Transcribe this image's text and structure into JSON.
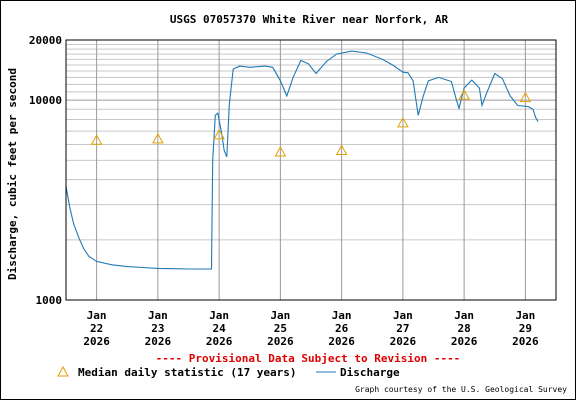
{
  "colors": {
    "discharge": "#1f7ab5",
    "median": "#e3a000",
    "provisional": "#e00000",
    "grid": "#c8c8c8"
  },
  "chart_data": {
    "type": "line",
    "title": "USGS 07057370 White River near Norfork, AR",
    "xlabel": "",
    "ylabel": "Discharge, cubic feet per second",
    "yscale": "log",
    "ylim": [
      1000,
      20000
    ],
    "xlim": [
      "2026-01-21T12:00",
      "2026-01-29T12:00"
    ],
    "grid": true,
    "y_ticks": [
      {
        "value": 1000,
        "label": "1000"
      },
      {
        "value": 10000,
        "label": "10000"
      },
      {
        "value": 20000,
        "label": "20000"
      }
    ],
    "x_ticks": [
      {
        "x": "2026-01-22",
        "line1": "Jan",
        "line2": "22",
        "line3": "2026"
      },
      {
        "x": "2026-01-23",
        "line1": "Jan",
        "line2": "23",
        "line3": "2026"
      },
      {
        "x": "2026-01-24",
        "line1": "Jan",
        "line2": "24",
        "line3": "2026"
      },
      {
        "x": "2026-01-25",
        "line1": "Jan",
        "line2": "25",
        "line3": "2026"
      },
      {
        "x": "2026-01-26",
        "line1": "Jan",
        "line2": "26",
        "line3": "2026"
      },
      {
        "x": "2026-01-27",
        "line1": "Jan",
        "line2": "27",
        "line3": "2026"
      },
      {
        "x": "2026-01-28",
        "line1": "Jan",
        "line2": "28",
        "line3": "2026"
      },
      {
        "x": "2026-01-29",
        "line1": "Jan",
        "line2": "29",
        "line3": "2026"
      }
    ],
    "series": [
      {
        "name": "Discharge",
        "points": [
          [
            "2026-01-21T12:00",
            3700
          ],
          [
            "2026-01-21T13:30",
            2900
          ],
          [
            "2026-01-21T15:00",
            2400
          ],
          [
            "2026-01-21T17:00",
            2050
          ],
          [
            "2026-01-21T19:00",
            1800
          ],
          [
            "2026-01-21T21:00",
            1650
          ],
          [
            "2026-01-22T00:00",
            1560
          ],
          [
            "2026-01-22T06:00",
            1500
          ],
          [
            "2026-01-22T12:00",
            1470
          ],
          [
            "2026-01-22T18:00",
            1455
          ],
          [
            "2026-01-23T00:00",
            1440
          ],
          [
            "2026-01-23T06:00",
            1435
          ],
          [
            "2026-01-23T12:00",
            1430
          ],
          [
            "2026-01-23T18:00",
            1430
          ],
          [
            "2026-01-23T21:00",
            1430
          ],
          [
            "2026-01-23T21:30",
            5000
          ],
          [
            "2026-01-23T22:30",
            8400
          ],
          [
            "2026-01-23T23:30",
            8600
          ],
          [
            "2026-01-24T01:00",
            6800
          ],
          [
            "2026-01-24T02:00",
            5600
          ],
          [
            "2026-01-24T03:00",
            5200
          ],
          [
            "2026-01-24T04:00",
            9500
          ],
          [
            "2026-01-24T05:30",
            14300
          ],
          [
            "2026-01-24T08:00",
            14800
          ],
          [
            "2026-01-24T12:00",
            14600
          ],
          [
            "2026-01-24T18:00",
            14800
          ],
          [
            "2026-01-24T21:00",
            14600
          ],
          [
            "2026-01-25T00:00",
            12500
          ],
          [
            "2026-01-25T02:30",
            10500
          ],
          [
            "2026-01-25T05:00",
            13000
          ],
          [
            "2026-01-25T08:00",
            15800
          ],
          [
            "2026-01-25T11:00",
            15200
          ],
          [
            "2026-01-25T14:00",
            13600
          ],
          [
            "2026-01-25T18:00",
            15600
          ],
          [
            "2026-01-25T22:00",
            17000
          ],
          [
            "2026-01-26T04:00",
            17600
          ],
          [
            "2026-01-26T10:00",
            17200
          ],
          [
            "2026-01-26T16:00",
            16000
          ],
          [
            "2026-01-26T20:00",
            15000
          ],
          [
            "2026-01-27T00:00",
            13800
          ],
          [
            "2026-01-27T02:00",
            13700
          ],
          [
            "2026-01-27T04:00",
            12500
          ],
          [
            "2026-01-27T06:00",
            8400
          ],
          [
            "2026-01-27T08:00",
            10500
          ],
          [
            "2026-01-27T10:00",
            12500
          ],
          [
            "2026-01-27T14:00",
            13000
          ],
          [
            "2026-01-27T19:00",
            12400
          ],
          [
            "2026-01-27T21:00",
            10000
          ],
          [
            "2026-01-27T22:00",
            9100
          ],
          [
            "2026-01-28T00:00",
            11500
          ],
          [
            "2026-01-28T03:00",
            12600
          ],
          [
            "2026-01-28T06:00",
            11500
          ],
          [
            "2026-01-28T07:00",
            9400
          ],
          [
            "2026-01-28T09:00",
            11000
          ],
          [
            "2026-01-28T12:00",
            13600
          ],
          [
            "2026-01-28T15:00",
            12800
          ],
          [
            "2026-01-28T18:00",
            10500
          ],
          [
            "2026-01-28T21:00",
            9400
          ],
          [
            "2026-01-29T01:00",
            9300
          ],
          [
            "2026-01-29T03:00",
            9000
          ],
          [
            "2026-01-29T04:00",
            8200
          ],
          [
            "2026-01-29T05:00",
            7800
          ]
        ]
      },
      {
        "name": "Median daily statistic (17 years)",
        "points": [
          [
            "2026-01-22",
            6300
          ],
          [
            "2026-01-23",
            6400
          ],
          [
            "2026-01-24",
            6700
          ],
          [
            "2026-01-25",
            5500
          ],
          [
            "2026-01-26",
            5600
          ],
          [
            "2026-01-27",
            7700
          ],
          [
            "2026-01-28",
            10600
          ],
          [
            "2026-01-29",
            10300
          ]
        ]
      }
    ],
    "legend_position": "bottom",
    "annotation": "---- Provisional Data Subject to Revision ----"
  },
  "credit": "Graph courtesy of the U.S. Geological Survey"
}
